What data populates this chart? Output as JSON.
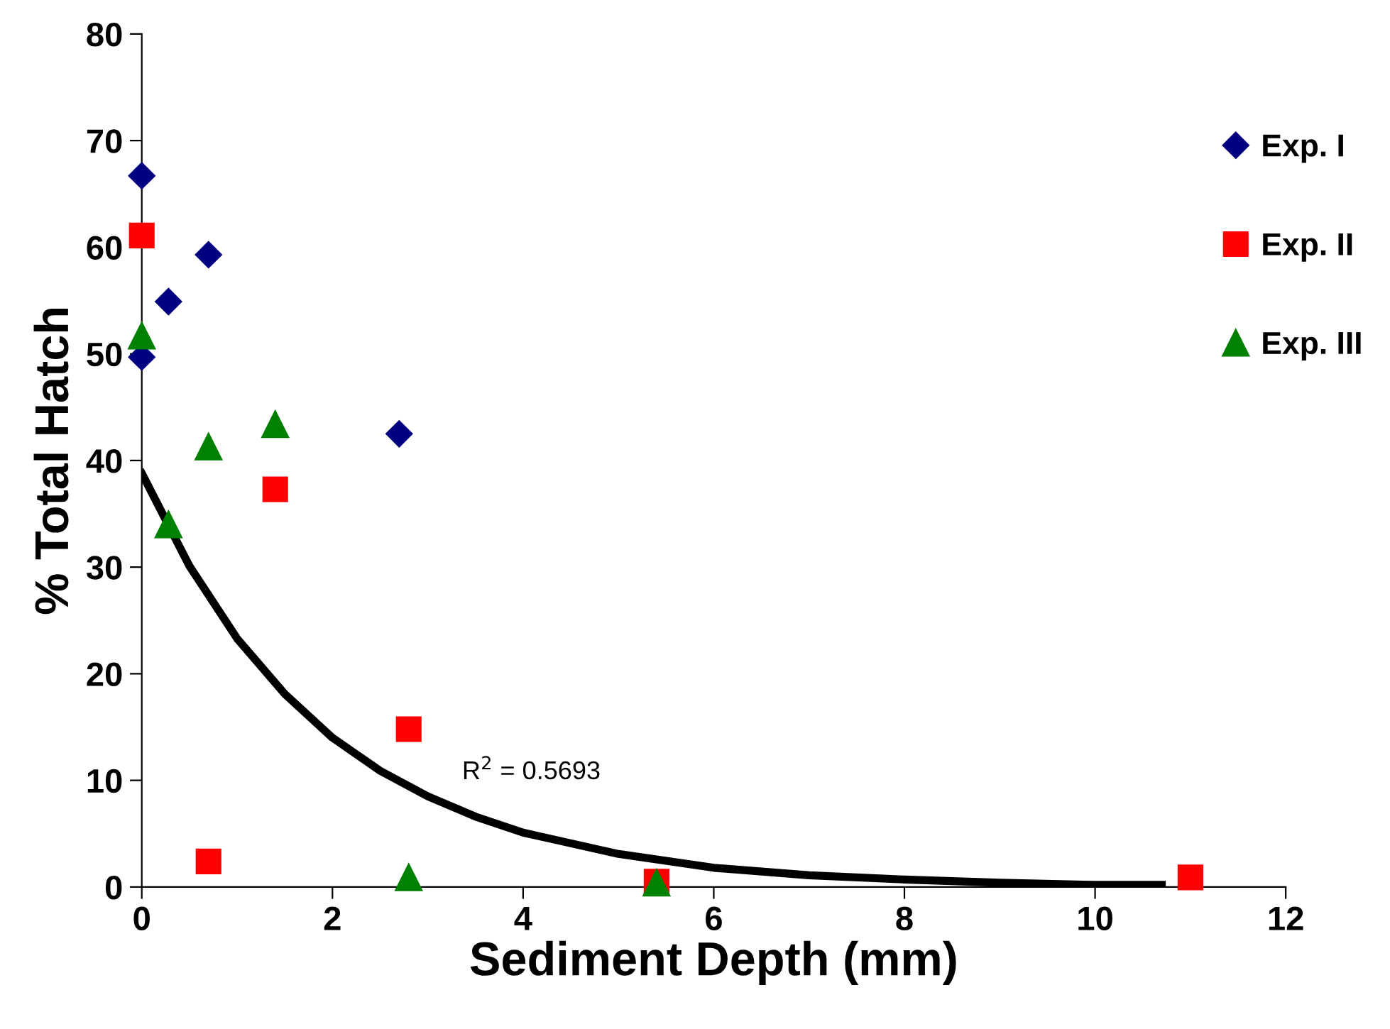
{
  "chart_data": {
    "type": "scatter",
    "xlabel": "Sediment Depth (mm)",
    "ylabel": "% Total Hatch",
    "xlim": [
      0,
      12
    ],
    "xticks": [
      0,
      2,
      4,
      6,
      8,
      10,
      12
    ],
    "ylim": [
      0,
      80
    ],
    "yticks": [
      0,
      10,
      20,
      30,
      40,
      50,
      60,
      70,
      80
    ],
    "grid": false,
    "legend": "right",
    "series": [
      {
        "name": "Exp. I",
        "color": "#000080",
        "marker": "diamond",
        "x": [
          0,
          0,
          0.28,
          0.7,
          2.7
        ],
        "values": [
          66.7,
          49.7,
          54.9,
          59.3,
          42.5
        ]
      },
      {
        "name": "Exp. II",
        "color": "#ff0000",
        "marker": "square",
        "x": [
          0,
          0.7,
          1.4,
          2.8,
          5.4,
          11
        ],
        "values": [
          61.1,
          2.4,
          37.3,
          14.8,
          0.5,
          0.9
        ]
      },
      {
        "name": "Exp. III",
        "color": "#008000",
        "marker": "triangle",
        "x": [
          0,
          0.28,
          0.7,
          1.4,
          2.8,
          5.4
        ],
        "values": [
          51.7,
          34.0,
          41.3,
          43.4,
          0.9,
          0.4
        ]
      },
      {
        "type": "line",
        "color": "#000000",
        "marker": "none",
        "line_style": "solid",
        "x": [
          0,
          0.5,
          1,
          1.5,
          2,
          2.5,
          3,
          3.5,
          4,
          5,
          6,
          7,
          8,
          9,
          10,
          10.7
        ],
        "values": [
          38.8,
          30.1,
          23.3,
          18.1,
          14.0,
          10.9,
          8.5,
          6.6,
          5.1,
          3.1,
          1.8,
          1.1,
          0.7,
          0.4,
          0.2,
          0.2
        ]
      }
    ],
    "annotations": [
      "R$^{2}$ = 0.5693"
    ]
  }
}
